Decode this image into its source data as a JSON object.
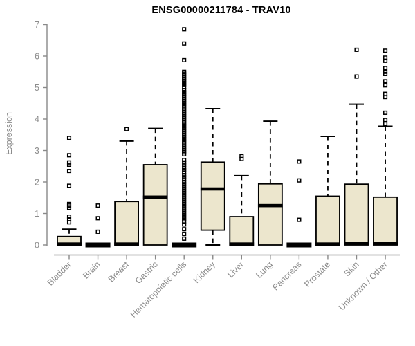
{
  "chart_data": {
    "type": "boxplot",
    "title": "ENSG00000211784 - TRAV10",
    "ylabel": "Expression",
    "xlabel": "",
    "ylim": [
      0,
      7
    ],
    "y_ticks": [
      0,
      1,
      2,
      3,
      4,
      5,
      6,
      7
    ],
    "grid": false,
    "legend": "none",
    "colors": {
      "box_fill": "#ece6cd",
      "box_stroke": "#000000",
      "median": "#000000",
      "whisker": "#000000",
      "outlier_stroke": "#000000",
      "axis": "#898989",
      "tick_text": "#8c8c8c",
      "title_text": "#000000",
      "background": "#ffffff"
    },
    "categories": [
      "Bladder",
      "Brain",
      "Breast",
      "Gastric",
      "Hematopoietic cells",
      "Kidney",
      "Liver",
      "Lung",
      "Pancreas",
      "Prostate",
      "Skin",
      "Unknown / Other"
    ],
    "series": [
      {
        "name": "Bladder",
        "q1": 0,
        "median": 0.03,
        "q3": 0.27,
        "whisker_low": 0,
        "whisker_high": 0.5,
        "outliers": [
          3.4,
          2.85,
          2.62,
          2.55,
          2.35,
          1.88,
          1.3,
          1.25,
          1.18,
          0.9,
          0.82,
          0.72
        ]
      },
      {
        "name": "Brain",
        "q1": 0,
        "median": 0,
        "q3": 0,
        "whisker_low": 0,
        "whisker_high": 0,
        "outliers": [
          1.25,
          0.85,
          0.42
        ]
      },
      {
        "name": "Breast",
        "q1": 0,
        "median": 0.03,
        "q3": 1.38,
        "whisker_low": 0,
        "whisker_high": 3.3,
        "outliers": [
          3.68
        ]
      },
      {
        "name": "Gastric",
        "q1": 0,
        "median": 1.52,
        "q3": 2.55,
        "whisker_low": 0,
        "whisker_high": 3.7,
        "outliers": []
      },
      {
        "name": "Hematopoietic cells",
        "q1": 0,
        "median": 0,
        "q3": 0,
        "whisker_low": 0,
        "whisker_high": 0,
        "outliers": [
          6.85,
          6.4,
          5.87,
          5.5,
          5.44,
          5.38,
          5.32,
          5.26,
          5.2,
          5.14,
          5.08,
          5.02,
          4.92,
          4.86,
          4.8,
          4.74,
          4.68,
          4.62,
          4.56,
          4.5,
          4.44,
          4.38,
          4.32,
          4.26,
          4.2,
          4.14,
          4.08,
          4.02,
          3.96,
          3.9,
          3.84,
          3.78,
          3.72,
          3.66,
          3.6,
          3.54,
          3.48,
          3.42,
          3.36,
          3.3,
          3.24,
          3.18,
          3.12,
          3.06,
          3.0,
          2.94,
          2.88,
          2.7,
          2.62,
          2.55,
          2.45,
          2.38,
          2.3,
          2.22,
          2.15,
          2.08,
          2.0,
          1.93,
          1.86,
          1.79,
          1.72,
          1.65,
          1.58,
          1.51,
          1.44,
          1.37,
          1.3,
          1.23,
          1.16,
          1.09,
          1.02,
          0.95,
          0.88,
          0.81,
          0.75,
          0.65,
          0.5,
          0.35,
          0.2
        ]
      },
      {
        "name": "Kidney",
        "q1": 0.47,
        "median": 1.78,
        "q3": 2.63,
        "whisker_low": 0,
        "whisker_high": 4.33,
        "outliers": []
      },
      {
        "name": "Liver",
        "q1": 0,
        "median": 0.03,
        "q3": 0.9,
        "whisker_low": 0,
        "whisker_high": 2.2,
        "outliers": [
          2.82,
          2.73
        ]
      },
      {
        "name": "Lung",
        "q1": 0,
        "median": 1.25,
        "q3": 1.94,
        "whisker_low": 0,
        "whisker_high": 3.93,
        "outliers": []
      },
      {
        "name": "Pancreas",
        "q1": 0,
        "median": 0,
        "q3": 0,
        "whisker_low": 0,
        "whisker_high": 0,
        "outliers": [
          2.65,
          2.05,
          0.8
        ]
      },
      {
        "name": "Prostate",
        "q1": 0,
        "median": 0.03,
        "q3": 1.55,
        "whisker_low": 0,
        "whisker_high": 3.45,
        "outliers": []
      },
      {
        "name": "Skin",
        "q1": 0,
        "median": 0.05,
        "q3": 1.93,
        "whisker_low": 0,
        "whisker_high": 4.47,
        "outliers": [
          6.2,
          5.35
        ]
      },
      {
        "name": "Unknown / Other",
        "q1": 0,
        "median": 0.05,
        "q3": 1.52,
        "whisker_low": 0,
        "whisker_high": 3.77,
        "outliers": [
          6.17,
          5.95,
          5.85,
          5.62,
          5.5,
          5.43,
          5.2,
          5.07,
          4.8,
          4.7,
          4.2,
          3.97,
          3.85
        ]
      }
    ]
  }
}
